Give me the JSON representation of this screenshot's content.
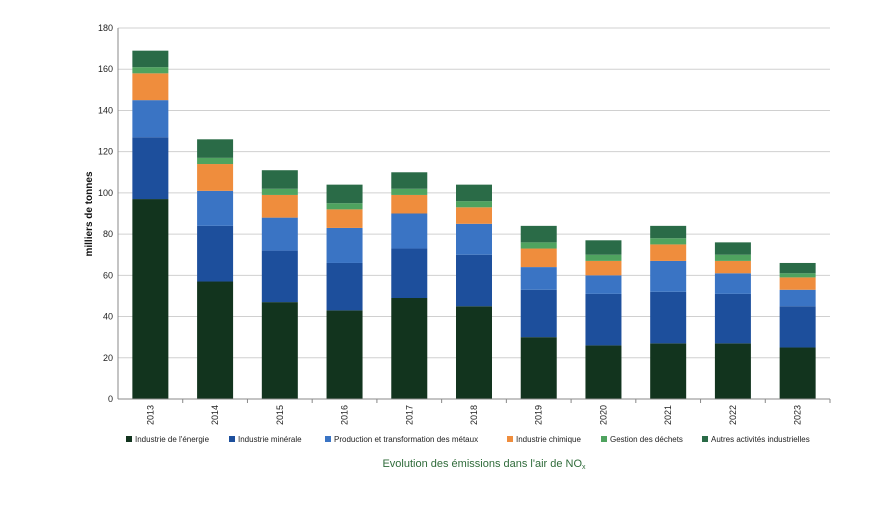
{
  "chart_data": {
    "type": "bar",
    "stacked": true,
    "categories": [
      "2013",
      "2014",
      "2015",
      "2016",
      "2017",
      "2018",
      "2019",
      "2020",
      "2021",
      "2022",
      "2023"
    ],
    "series": [
      {
        "name": "Industrie de l'énergie",
        "color": "#12341e",
        "values": [
          97,
          57,
          47,
          43,
          49,
          45,
          30,
          26,
          27,
          27,
          25
        ]
      },
      {
        "name": "Industrie minérale",
        "color": "#1d4f9c",
        "values": [
          30,
          27,
          25,
          23,
          24,
          25,
          23,
          25,
          25,
          24,
          20
        ]
      },
      {
        "name": "Production et transformation des métaux",
        "color": "#3a74c4",
        "values": [
          18,
          17,
          16,
          17,
          17,
          15,
          11,
          9,
          15,
          10,
          8
        ]
      },
      {
        "name": "Industrie chimique",
        "color": "#ef8d3d",
        "values": [
          13,
          13,
          11,
          9,
          9,
          8,
          9,
          7,
          8,
          6,
          6
        ]
      },
      {
        "name": "Gestion des déchets",
        "color": "#4fa35f",
        "values": [
          3,
          3,
          3,
          3,
          3,
          3,
          3,
          3,
          3,
          3,
          2
        ]
      },
      {
        "name": "Autres activités industrielles",
        "color": "#2a6b47",
        "values": [
          8,
          9,
          9,
          9,
          8,
          8,
          8,
          7,
          6,
          6,
          5
        ]
      }
    ],
    "ylabel": "milliers de tonnes",
    "ylim": [
      0,
      180
    ],
    "yticks": [
      0,
      20,
      40,
      60,
      80,
      100,
      120,
      140,
      160,
      180
    ],
    "grid": true,
    "legend": "bottom",
    "caption_main": "Evolution des émissions dans l'air de NO",
    "caption_sub": "x"
  }
}
